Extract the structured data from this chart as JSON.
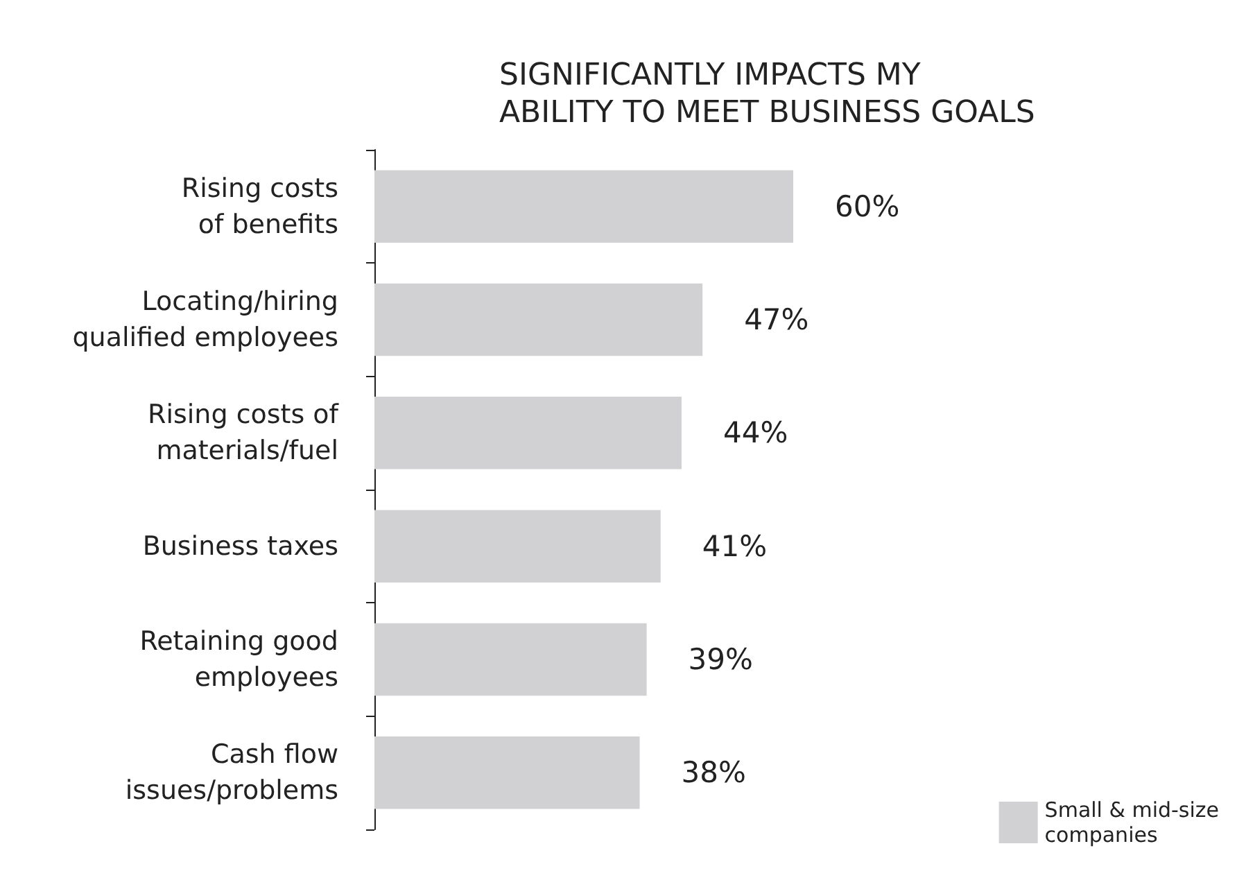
{
  "chart_data": {
    "type": "bar",
    "orientation": "horizontal",
    "title": "SIGNIFICANTLY IMPACTS MY\nABILITY TO MEET BUSINESS GOALS",
    "categories": [
      "Rising costs\nof benefits",
      "Locating/hiring\nqualified employees",
      "Rising costs of\nmaterials/fuel",
      "Business taxes",
      "Retaining good\nemployees",
      "Cash flow\nissues/problems"
    ],
    "series": [
      {
        "name": "Small & mid-size\ncompanies",
        "color": "#d1d1d3",
        "values": [
          60,
          47,
          44,
          41,
          39,
          38
        ],
        "value_labels": [
          "60%",
          "47%",
          "44%",
          "41%",
          "39%",
          "38%"
        ]
      }
    ],
    "legend": "bottom right"
  }
}
